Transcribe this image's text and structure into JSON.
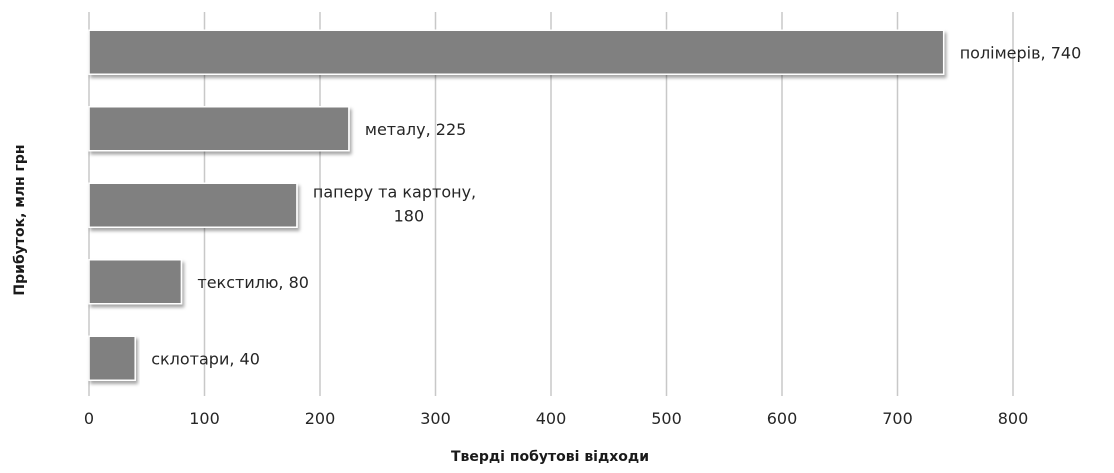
{
  "chart_data": {
    "type": "bar",
    "orientation": "horizontal",
    "categories": [
      "полімерів",
      "металу",
      "паперу та картону",
      "текстилю",
      "склотари"
    ],
    "values": [
      740,
      225,
      180,
      80,
      40
    ],
    "data_labels": [
      [
        "полімерів, 740"
      ],
      [
        "металу, 225"
      ],
      [
        "паперу та картону,",
        "180"
      ],
      [
        "текстилю, 80"
      ],
      [
        "склотари, 40"
      ]
    ],
    "xlabel": "Тверді побутові відходи",
    "ylabel": "Прибуток, млн  грн",
    "xlim": [
      0,
      800
    ],
    "xticks": [
      0,
      100,
      200,
      300,
      400,
      500,
      600,
      700,
      800
    ],
    "grid": "vertical",
    "legend": "none",
    "bar_color": "#808080",
    "gridline_color": "#c8c8c8"
  }
}
